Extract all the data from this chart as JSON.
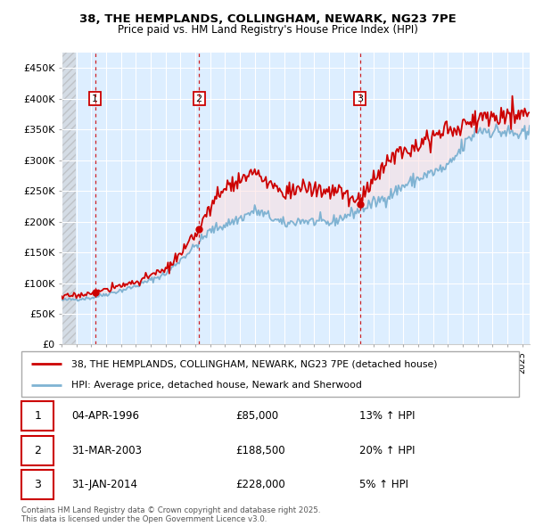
{
  "title_line1": "38, THE HEMPLANDS, COLLINGHAM, NEWARK, NG23 7PE",
  "title_line2": "Price paid vs. HM Land Registry's House Price Index (HPI)",
  "ylim": [
    0,
    475000
  ],
  "yticks": [
    0,
    50000,
    100000,
    150000,
    200000,
    250000,
    300000,
    350000,
    400000,
    450000
  ],
  "ytick_labels": [
    "£0",
    "£50K",
    "£100K",
    "£150K",
    "£200K",
    "£250K",
    "£300K",
    "£350K",
    "£400K",
    "£450K"
  ],
  "x_start_year": 1994,
  "x_end_year": 2025.5,
  "sales": [
    {
      "date_num": 1996.25,
      "price": 85000,
      "label": "1"
    },
    {
      "date_num": 2003.25,
      "price": 188500,
      "label": "2"
    },
    {
      "date_num": 2014.08,
      "price": 228000,
      "label": "3"
    }
  ],
  "legend_line1": "38, THE HEMPLANDS, COLLINGHAM, NEWARK, NG23 7PE (detached house)",
  "legend_line2": "HPI: Average price, detached house, Newark and Sherwood",
  "legend_color1": "#cc0000",
  "legend_color2": "#7fb3d3",
  "table_rows": [
    {
      "num": "1",
      "date": "04-APR-1996",
      "price": "£85,000",
      "hpi": "13% ↑ HPI"
    },
    {
      "num": "2",
      "date": "31-MAR-2003",
      "price": "£188,500",
      "hpi": "20% ↑ HPI"
    },
    {
      "num": "3",
      "date": "31-JAN-2014",
      "price": "£228,000",
      "hpi": "5% ↑ HPI"
    }
  ],
  "footer": "Contains HM Land Registry data © Crown copyright and database right 2025.\nThis data is licensed under the Open Government Licence v3.0.",
  "plot_bg_color": "#ddeeff",
  "grid_color": "#ffffff",
  "red_line_color": "#cc0000",
  "blue_line_color": "#7fb3d3",
  "hpi_base": {
    "1994": 72000,
    "1995": 74000,
    "1996": 76000,
    "1997": 82000,
    "1998": 88000,
    "1999": 95000,
    "2000": 105000,
    "2001": 115000,
    "2002": 138000,
    "2003": 160000,
    "2004": 185000,
    "2005": 195000,
    "2006": 205000,
    "2007": 218000,
    "2008": 208000,
    "2009": 195000,
    "2010": 202000,
    "2011": 200000,
    "2012": 197000,
    "2013": 208000,
    "2014": 218000,
    "2015": 230000,
    "2016": 242000,
    "2017": 258000,
    "2018": 270000,
    "2019": 280000,
    "2020": 288000,
    "2021": 322000,
    "2022": 350000,
    "2023": 348000,
    "2024": 345000,
    "2025": 340000
  },
  "prop_base": {
    "1994": 78000,
    "1995": 80000,
    "1996": 85000,
    "1997": 90000,
    "1998": 96000,
    "1999": 102000,
    "2000": 112000,
    "2001": 122000,
    "2002": 145000,
    "2003": 175000,
    "2004": 220000,
    "2005": 258000,
    "2006": 268000,
    "2007": 278000,
    "2008": 262000,
    "2009": 248000,
    "2010": 255000,
    "2011": 252000,
    "2012": 248000,
    "2013": 255000,
    "2014": 268000,
    "2015": 285000,
    "2016": 298000,
    "2017": 318000,
    "2018": 330000,
    "2019": 340000,
    "2020": 348000,
    "2021": 355000,
    "2022": 368000,
    "2023": 372000,
    "2024": 375000,
    "2025": 378000
  }
}
